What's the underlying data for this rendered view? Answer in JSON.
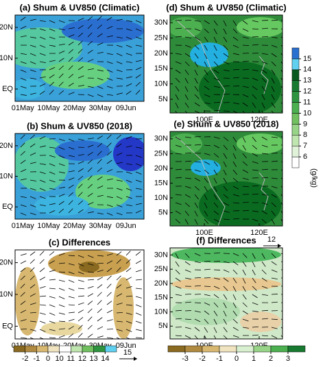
{
  "chart_data": [
    {
      "type": "contour",
      "title": "(a) Shum & UV850 (Climatic)",
      "categories": [
        "01May",
        "10May",
        "20May",
        "30May",
        "09Jun"
      ],
      "ylim": [
        -4,
        24
      ],
      "yticks": [
        {
          "value": 0,
          "label": "EQ"
        },
        {
          "value": 10,
          "label": "10N"
        },
        {
          "value": 20,
          "label": "20N"
        }
      ]
    },
    {
      "type": "contour",
      "title": "(b) Shum & UV850 (2018)",
      "categories": [
        "01May",
        "10May",
        "20May",
        "30May",
        "09Jun"
      ],
      "ylim": [
        -4,
        24
      ],
      "yticks": [
        {
          "value": 0,
          "label": "EQ"
        },
        {
          "value": 10,
          "label": "10N"
        },
        {
          "value": 20,
          "label": "20N"
        }
      ]
    },
    {
      "type": "contour",
      "title": "(c) Differences",
      "categories": [
        "01May",
        "10May",
        "20May",
        "30May",
        "09Jun"
      ],
      "ylim": [
        -4,
        24
      ],
      "yticks": [
        {
          "value": 0,
          "label": "EQ"
        },
        {
          "value": 10,
          "label": "10N"
        },
        {
          "value": 20,
          "label": "20N"
        }
      ],
      "colorbar": {
        "ticks": [
          -2,
          -1,
          0,
          10,
          11,
          12,
          13,
          14
        ]
      },
      "vector_ref": 15
    },
    {
      "type": "map",
      "title": "(d) Shum & UV850 (Climatic)",
      "xlim": [
        87.5,
        128.5
      ],
      "xticks": [
        {
          "value": 100,
          "label": "100E"
        },
        {
          "value": 120,
          "label": "120E"
        }
      ],
      "ylim": [
        0.5,
        32.5
      ],
      "yticks": [
        {
          "value": 5,
          "label": "5N"
        },
        {
          "value": 10,
          "label": "10N"
        },
        {
          "value": 15,
          "label": "15N"
        },
        {
          "value": 20,
          "label": "20N"
        },
        {
          "value": 25,
          "label": "25N"
        },
        {
          "value": 30,
          "label": "30N"
        }
      ],
      "colorbar": {
        "ticks": [
          6,
          7,
          8,
          9,
          10,
          11,
          12,
          13,
          14,
          15
        ],
        "unit": "(g/kg)"
      }
    },
    {
      "type": "map",
      "title": "(e) Shum & UV850 (2018)",
      "xlim": [
        87.5,
        128.5
      ],
      "xticks": [
        {
          "value": 100,
          "label": "100E"
        },
        {
          "value": 120,
          "label": "120E"
        }
      ],
      "ylim": [
        0.5,
        32.5
      ],
      "yticks": [
        {
          "value": 5,
          "label": "5N"
        },
        {
          "value": 10,
          "label": "10N"
        },
        {
          "value": 15,
          "label": "15N"
        },
        {
          "value": 20,
          "label": "20N"
        },
        {
          "value": 25,
          "label": "25N"
        },
        {
          "value": 30,
          "label": "30N"
        }
      ]
    },
    {
      "type": "map",
      "title": "(f) Differences",
      "xlim": [
        87.5,
        128.5
      ],
      "xticks": [
        {
          "value": 100,
          "label": "100E"
        },
        {
          "value": 120,
          "label": "120E"
        }
      ],
      "ylim": [
        0.5,
        32.5
      ],
      "yticks": [
        {
          "value": 5,
          "label": "5N"
        },
        {
          "value": 10,
          "label": "10N"
        },
        {
          "value": 15,
          "label": "15N"
        },
        {
          "value": 20,
          "label": "20N"
        },
        {
          "value": 25,
          "label": "25N"
        },
        {
          "value": 30,
          "label": "30N"
        }
      ],
      "colorbar": {
        "ticks": [
          -3,
          -2,
          -1,
          0,
          1,
          2,
          3
        ]
      },
      "vector_ref": 12
    }
  ]
}
